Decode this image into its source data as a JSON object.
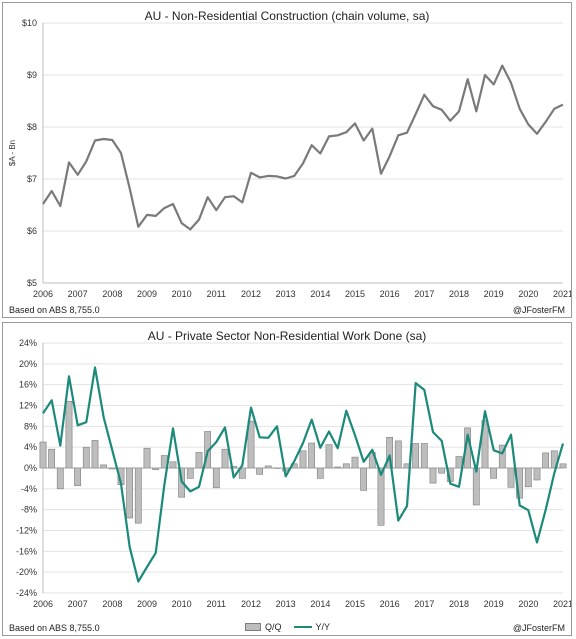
{
  "chart_data": [
    {
      "type": "line",
      "title": "AU - Non-Residential Construction (chain volume, sa)",
      "ylabel": "$A - Bn",
      "ylim": [
        5,
        10
      ],
      "yticks": [
        "$5",
        "$6",
        "$7",
        "$8",
        "$9",
        "$10"
      ],
      "xlim": [
        2006,
        2021
      ],
      "xticks": [
        "2006",
        "2007",
        "2008",
        "2009",
        "2010",
        "2011",
        "2012",
        "2013",
        "2014",
        "2015",
        "2016",
        "2017",
        "2018",
        "2019",
        "2020",
        "2021"
      ],
      "source": "Based on ABS  8,755.0",
      "credit": "@JFosterFM",
      "colors": {
        "line": "#7a7a7a"
      },
      "series": [
        {
          "x": [
            2006.0,
            2006.25,
            2006.5,
            2006.75,
            2007.0,
            2007.25,
            2007.5,
            2007.75,
            2008.0,
            2008.25,
            2008.5,
            2008.75,
            2009.0,
            2009.25,
            2009.5,
            2009.75,
            2010.0,
            2010.25,
            2010.5,
            2010.75,
            2011.0,
            2011.25,
            2011.5,
            2011.75,
            2012.0,
            2012.25,
            2012.5,
            2012.75,
            2013.0,
            2013.25,
            2013.5,
            2013.75,
            2014.0,
            2014.25,
            2014.5,
            2014.75,
            2015.0,
            2015.25,
            2015.5,
            2015.75,
            2016.0,
            2016.25,
            2016.5,
            2016.75,
            2017.0,
            2017.25,
            2017.5,
            2017.75,
            2018.0,
            2018.25,
            2018.5,
            2018.75,
            2019.0,
            2019.25,
            2019.5,
            2019.75,
            2020.0,
            2020.25,
            2020.5,
            2020.75,
            2021.0
          ],
          "values": [
            6.52,
            6.77,
            6.48,
            7.32,
            7.08,
            7.34,
            7.74,
            7.77,
            7.75,
            7.5,
            6.82,
            6.08,
            6.31,
            6.29,
            6.44,
            6.52,
            6.15,
            6.03,
            6.22,
            6.65,
            6.4,
            6.65,
            6.67,
            6.55,
            7.12,
            7.03,
            7.06,
            7.05,
            7.01,
            7.06,
            7.3,
            7.65,
            7.49,
            7.82,
            7.84,
            7.9,
            8.07,
            7.74,
            7.97,
            7.1,
            7.44,
            7.84,
            7.89,
            8.25,
            8.62,
            8.4,
            8.33,
            8.12,
            8.3,
            8.92,
            8.3,
            9.0,
            8.82,
            9.18,
            8.85,
            8.35,
            8.05,
            7.87,
            8.1,
            8.35,
            8.43
          ]
        }
      ]
    },
    {
      "type": "bar",
      "title": "AU - Private Sector Non-Residential Work Done (sa)",
      "ylim": [
        -24,
        24
      ],
      "yticks": [
        "-24%",
        "-20%",
        "-16%",
        "-12%",
        "-8%",
        "-4%",
        "0%",
        "4%",
        "8%",
        "12%",
        "16%",
        "20%",
        "24%"
      ],
      "xlim": [
        2006,
        2021
      ],
      "xticks": [
        "2006",
        "2007",
        "2008",
        "2009",
        "2010",
        "2011",
        "2012",
        "2013",
        "2014",
        "2015",
        "2016",
        "2017",
        "2018",
        "2019",
        "2020",
        "2021"
      ],
      "source": "Based on ABS  8,755.0",
      "credit": "@JFosterFM",
      "legend": {
        "position": "bottom"
      },
      "colors": {
        "bars": "#bdbdbd",
        "bar_edge": "#7f7f7f",
        "line": "#1b8a7a"
      },
      "series": [
        {
          "name": "Q/Q",
          "type": "bar",
          "x": [
            2006.0,
            2006.25,
            2006.5,
            2006.75,
            2007.0,
            2007.25,
            2007.5,
            2007.75,
            2008.0,
            2008.25,
            2008.5,
            2008.75,
            2009.0,
            2009.25,
            2009.5,
            2009.75,
            2010.0,
            2010.25,
            2010.5,
            2010.75,
            2011.0,
            2011.25,
            2011.5,
            2011.75,
            2012.0,
            2012.25,
            2012.5,
            2012.75,
            2013.0,
            2013.25,
            2013.5,
            2013.75,
            2014.0,
            2014.25,
            2014.5,
            2014.75,
            2015.0,
            2015.25,
            2015.5,
            2015.75,
            2016.0,
            2016.25,
            2016.5,
            2016.75,
            2017.0,
            2017.25,
            2017.5,
            2017.75,
            2018.0,
            2018.25,
            2018.5,
            2018.75,
            2019.0,
            2019.25,
            2019.5,
            2019.75,
            2020.0,
            2020.25,
            2020.5,
            2020.75,
            2021.0
          ],
          "values": [
            5.0,
            3.6,
            -4.0,
            12.8,
            -3.4,
            4.0,
            5.3,
            0.6,
            -0.2,
            -3.2,
            -9.6,
            -10.6,
            3.8,
            -0.3,
            2.4,
            1.2,
            -5.6,
            -2.0,
            3.0,
            7.0,
            -3.8,
            3.6,
            0.3,
            -2.0,
            9.0,
            -1.2,
            0.4,
            -0.1,
            -0.6,
            0.8,
            3.3,
            4.8,
            -2.0,
            4.5,
            0.2,
            0.8,
            2.1,
            -4.3,
            3.0,
            -11.0,
            5.9,
            5.2,
            0.8,
            4.7,
            4.7,
            -2.9,
            -1.0,
            -2.6,
            2.2,
            7.7,
            -7.1,
            9.1,
            -2.0,
            4.4,
            -3.7,
            -5.8,
            -3.6,
            -2.3,
            2.9,
            3.3,
            0.8
          ]
        },
        {
          "name": "Y/Y",
          "type": "line",
          "x": [
            2006.0,
            2006.25,
            2006.5,
            2006.75,
            2007.0,
            2007.25,
            2007.5,
            2007.75,
            2008.0,
            2008.25,
            2008.5,
            2008.75,
            2009.0,
            2009.25,
            2009.5,
            2009.75,
            2010.0,
            2010.25,
            2010.5,
            2010.75,
            2011.0,
            2011.25,
            2011.5,
            2011.75,
            2012.0,
            2012.25,
            2012.5,
            2012.75,
            2013.0,
            2013.25,
            2013.5,
            2013.75,
            2014.0,
            2014.25,
            2014.5,
            2014.75,
            2015.0,
            2015.25,
            2015.5,
            2015.75,
            2016.0,
            2016.25,
            2016.5,
            2016.75,
            2017.0,
            2017.25,
            2017.5,
            2017.75,
            2018.0,
            2018.25,
            2018.5,
            2018.75,
            2019.0,
            2019.25,
            2019.5,
            2019.75,
            2020.0,
            2020.25,
            2020.5,
            2020.75,
            2021.0
          ],
          "values": [
            10.5,
            13.0,
            4.3,
            17.6,
            8.2,
            8.8,
            19.3,
            9.7,
            3.4,
            -3.0,
            -15.2,
            -21.8,
            -19.0,
            -16.3,
            -3.3,
            7.6,
            -2.6,
            -4.5,
            -3.6,
            3.2,
            5.0,
            7.8,
            -1.8,
            0.5,
            11.6,
            5.9,
            5.8,
            8.0,
            -1.6,
            1.3,
            4.8,
            9.3,
            3.9,
            7.0,
            3.8,
            11.0,
            6.3,
            1.2,
            3.5,
            -1.3,
            2.4,
            -10.1,
            -7.3,
            16.3,
            15.0,
            6.9,
            5.2,
            -3.0,
            -3.6,
            6.4,
            -0.7,
            10.9,
            3.4,
            2.8,
            6.4,
            -7.2,
            -8.1,
            -14.3,
            -8.0,
            -1.0,
            4.7
          ]
        }
      ]
    }
  ]
}
